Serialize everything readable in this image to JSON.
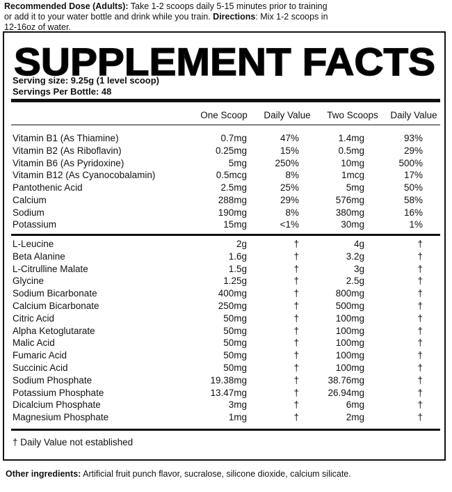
{
  "intro": {
    "dose_label": "Recommended Dose (Adults):",
    "dose_text": "Take 1-2 scoops daily 5-15 minutes prior to training or add it to your water bottle and drink while you train.",
    "directions_label": "Directions",
    "directions_text": ": Mix 1-2 scoops in 12-16oz of water."
  },
  "panel": {
    "title": "SUPPLEMENT FACTS",
    "serving_size": "Serving size: 9.25g (1 level scoop)",
    "servings_per_bottle": "Servings Per Bottle: 48",
    "columns": [
      "One Scoop",
      "Daily Value",
      "Two Scoops",
      "Daily Value"
    ],
    "vitamins": [
      [
        "Vitamin B1 (As Thiamine)",
        "0.7mg",
        "47%",
        "1.4mg",
        "93%"
      ],
      [
        "Vitamin B2 (As Riboflavin)",
        "0.25mg",
        "15%",
        "0.5mg",
        "29%"
      ],
      [
        "Vitamin B6 (As Pyridoxine)",
        "5mg",
        "250%",
        "10mg",
        "500%"
      ],
      [
        "Vitamin B12 (As Cyanocobalamin)",
        "0.5mcg",
        "8%",
        "1mcg",
        "17%"
      ],
      [
        "Pantothenic Acid",
        "2.5mg",
        "25%",
        "5mg",
        "50%"
      ],
      [
        "Calcium",
        "288mg",
        "29%",
        "576mg",
        "58%"
      ],
      [
        "Sodium",
        "190mg",
        "8%",
        "380mg",
        "16%"
      ],
      [
        "Potassium",
        "15mg",
        "<1%",
        "30mg",
        "1%"
      ]
    ],
    "ingredients": [
      [
        "L-Leucine",
        "2g",
        "†",
        "4g",
        "†"
      ],
      [
        "Beta Alanine",
        "1.6g",
        "†",
        "3.2g",
        "†"
      ],
      [
        "L-Citrulline Malate",
        "1.5g",
        "†",
        "3g",
        "†"
      ],
      [
        "Glycine",
        "1.25g",
        "†",
        "2.5g",
        "†"
      ],
      [
        "Sodium Bicarbonate",
        "400mg",
        "†",
        "800mg",
        "†"
      ],
      [
        "Calcium Bicarbonate",
        "250mg",
        "†",
        "500mg",
        "†"
      ],
      [
        "Citric Acid",
        "50mg",
        "†",
        "100mg",
        "†"
      ],
      [
        "Alpha Ketoglutarate",
        "50mg",
        "†",
        "100mg",
        "†"
      ],
      [
        "Malic Acid",
        "50mg",
        "†",
        "100mg",
        "†"
      ],
      [
        "Fumaric Acid",
        "50mg",
        "†",
        "100mg",
        "†"
      ],
      [
        "Succinic Acid",
        "50mg",
        "†",
        "100mg",
        "†"
      ],
      [
        "Sodium Phosphate",
        "19.38mg",
        "†",
        "38.76mg",
        "†"
      ],
      [
        "Potassium Phosphate",
        "13.47mg",
        "†",
        "26.94mg",
        "†"
      ],
      [
        "Dicalcium Phosphate",
        "3mg",
        "†",
        "6mg",
        "†"
      ],
      [
        "Magnesium Phosphate",
        "1mg",
        "†",
        "2mg",
        "†"
      ]
    ],
    "footnote": "† Daily Value not established"
  },
  "other": {
    "label": "Other ingredients:",
    "text": "Artificial fruit punch flavor, sucralose, silicone dioxide, calcium silicate."
  }
}
